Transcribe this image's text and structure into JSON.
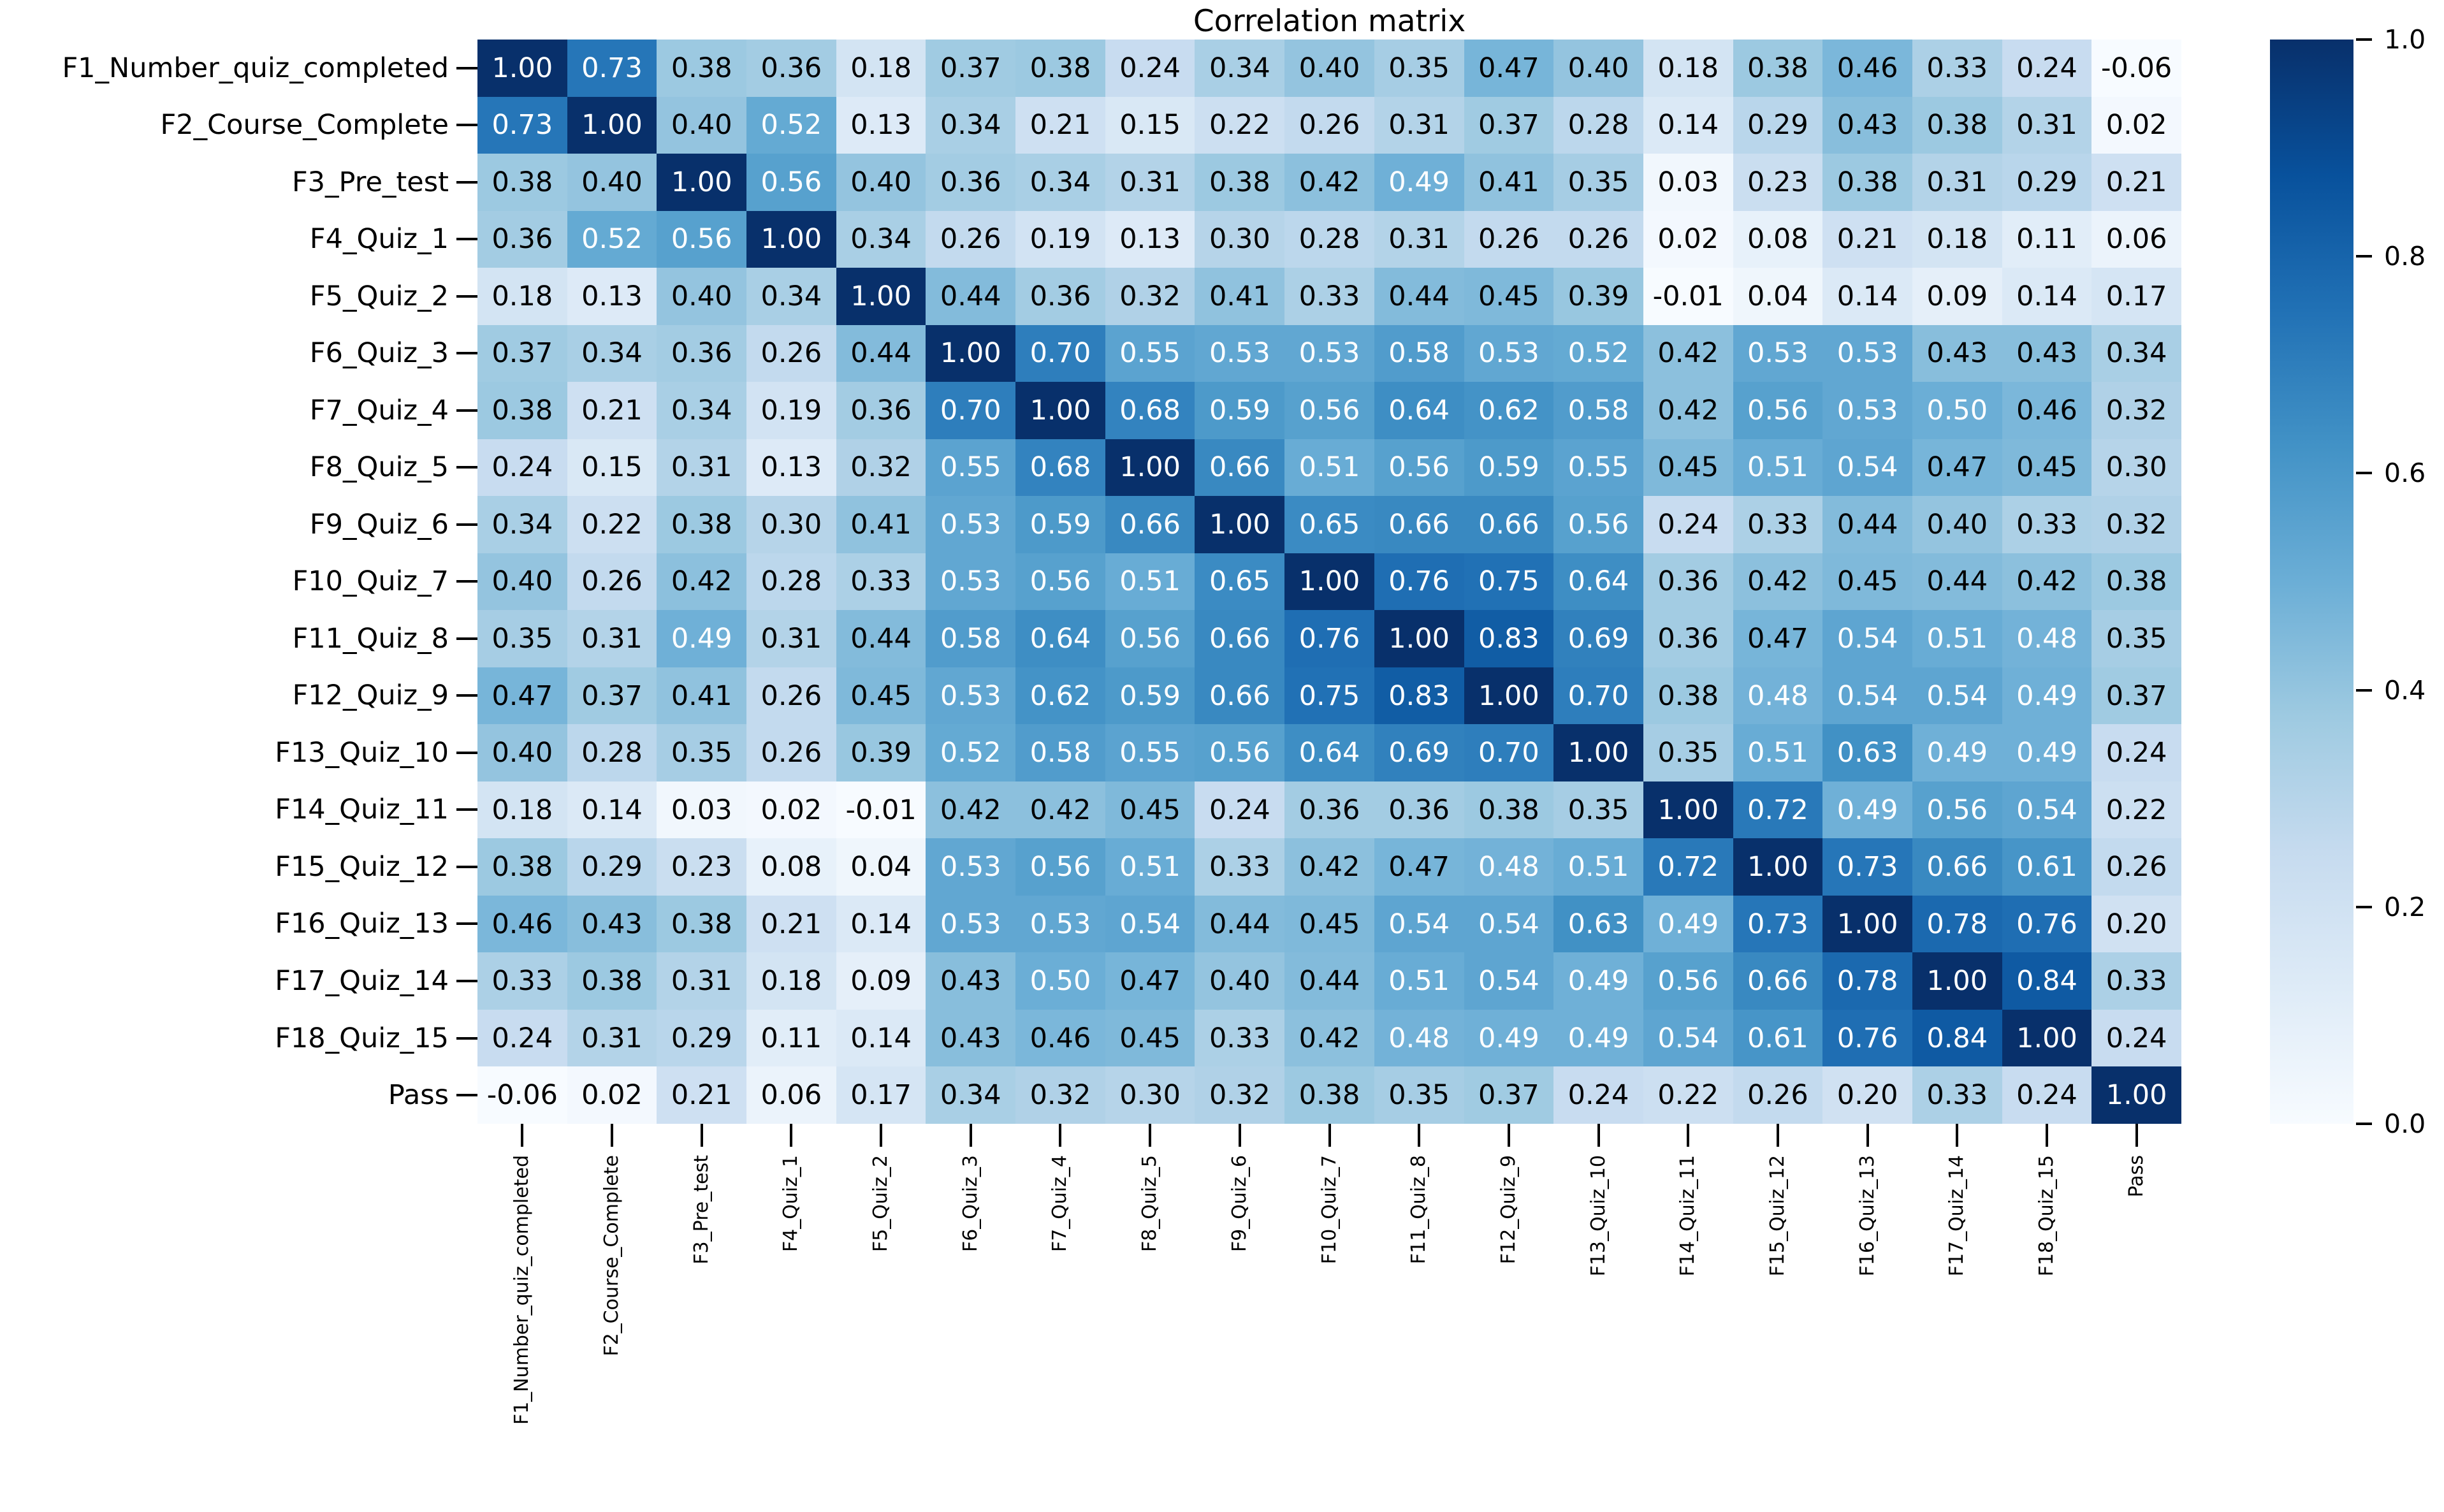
{
  "figure": {
    "background": "#ffffff"
  },
  "chart_data": {
    "type": "heatmap",
    "title": "Correlation matrix",
    "colormap": "Blues",
    "vmin": 0.0,
    "vmax": 1.0,
    "annotation_format": ".2f",
    "grid": false,
    "categories": [
      "F1_Number_quiz_completed",
      "F2_Course_Complete",
      "F3_Pre_test",
      "F4_Quiz_1",
      "F5_Quiz_2",
      "F6_Quiz_3",
      "F7_Quiz_4",
      "F8_Quiz_5",
      "F9_Quiz_6",
      "F10_Quiz_7",
      "F11_Quiz_8",
      "F12_Quiz_9",
      "F13_Quiz_10",
      "F14_Quiz_11",
      "F15_Quiz_12",
      "F16_Quiz_13",
      "F17_Quiz_14",
      "F18_Quiz_15",
      "Pass"
    ],
    "matrix": [
      [
        1.0,
        0.73,
        0.38,
        0.36,
        0.18,
        0.37,
        0.38,
        0.24,
        0.34,
        0.4,
        0.35,
        0.47,
        0.4,
        0.18,
        0.38,
        0.46,
        0.33,
        0.24,
        -0.06
      ],
      [
        0.73,
        1.0,
        0.4,
        0.52,
        0.13,
        0.34,
        0.21,
        0.15,
        0.22,
        0.26,
        0.31,
        0.37,
        0.28,
        0.14,
        0.29,
        0.43,
        0.38,
        0.31,
        0.02
      ],
      [
        0.38,
        0.4,
        1.0,
        0.56,
        0.4,
        0.36,
        0.34,
        0.31,
        0.38,
        0.42,
        0.49,
        0.41,
        0.35,
        0.03,
        0.23,
        0.38,
        0.31,
        0.29,
        0.21
      ],
      [
        0.36,
        0.52,
        0.56,
        1.0,
        0.34,
        0.26,
        0.19,
        0.13,
        0.3,
        0.28,
        0.31,
        0.26,
        0.26,
        0.02,
        0.08,
        0.21,
        0.18,
        0.11,
        0.06
      ],
      [
        0.18,
        0.13,
        0.4,
        0.34,
        1.0,
        0.44,
        0.36,
        0.32,
        0.41,
        0.33,
        0.44,
        0.45,
        0.39,
        -0.01,
        0.04,
        0.14,
        0.09,
        0.14,
        0.17
      ],
      [
        0.37,
        0.34,
        0.36,
        0.26,
        0.44,
        1.0,
        0.7,
        0.55,
        0.53,
        0.53,
        0.58,
        0.53,
        0.52,
        0.42,
        0.53,
        0.53,
        0.43,
        0.43,
        0.34
      ],
      [
        0.38,
        0.21,
        0.34,
        0.19,
        0.36,
        0.7,
        1.0,
        0.68,
        0.59,
        0.56,
        0.64,
        0.62,
        0.58,
        0.42,
        0.56,
        0.53,
        0.5,
        0.46,
        0.32
      ],
      [
        0.24,
        0.15,
        0.31,
        0.13,
        0.32,
        0.55,
        0.68,
        1.0,
        0.66,
        0.51,
        0.56,
        0.59,
        0.55,
        0.45,
        0.51,
        0.54,
        0.47,
        0.45,
        0.3
      ],
      [
        0.34,
        0.22,
        0.38,
        0.3,
        0.41,
        0.53,
        0.59,
        0.66,
        1.0,
        0.65,
        0.66,
        0.66,
        0.56,
        0.24,
        0.33,
        0.44,
        0.4,
        0.33,
        0.32
      ],
      [
        0.4,
        0.26,
        0.42,
        0.28,
        0.33,
        0.53,
        0.56,
        0.51,
        0.65,
        1.0,
        0.76,
        0.75,
        0.64,
        0.36,
        0.42,
        0.45,
        0.44,
        0.42,
        0.38
      ],
      [
        0.35,
        0.31,
        0.49,
        0.31,
        0.44,
        0.58,
        0.64,
        0.56,
        0.66,
        0.76,
        1.0,
        0.83,
        0.69,
        0.36,
        0.47,
        0.54,
        0.51,
        0.48,
        0.35
      ],
      [
        0.47,
        0.37,
        0.41,
        0.26,
        0.45,
        0.53,
        0.62,
        0.59,
        0.66,
        0.75,
        0.83,
        1.0,
        0.7,
        0.38,
        0.48,
        0.54,
        0.54,
        0.49,
        0.37
      ],
      [
        0.4,
        0.28,
        0.35,
        0.26,
        0.39,
        0.52,
        0.58,
        0.55,
        0.56,
        0.64,
        0.69,
        0.7,
        1.0,
        0.35,
        0.51,
        0.63,
        0.49,
        0.49,
        0.24
      ],
      [
        0.18,
        0.14,
        0.03,
        0.02,
        -0.01,
        0.42,
        0.42,
        0.45,
        0.24,
        0.36,
        0.36,
        0.38,
        0.35,
        1.0,
        0.72,
        0.49,
        0.56,
        0.54,
        0.22
      ],
      [
        0.38,
        0.29,
        0.23,
        0.08,
        0.04,
        0.53,
        0.56,
        0.51,
        0.33,
        0.42,
        0.47,
        0.48,
        0.51,
        0.72,
        1.0,
        0.73,
        0.66,
        0.61,
        0.26
      ],
      [
        0.46,
        0.43,
        0.38,
        0.21,
        0.14,
        0.53,
        0.53,
        0.54,
        0.44,
        0.45,
        0.54,
        0.54,
        0.63,
        0.49,
        0.73,
        1.0,
        0.78,
        0.76,
        0.2
      ],
      [
        0.33,
        0.38,
        0.31,
        0.18,
        0.09,
        0.43,
        0.5,
        0.47,
        0.4,
        0.44,
        0.51,
        0.54,
        0.49,
        0.56,
        0.66,
        0.78,
        1.0,
        0.84,
        0.33
      ],
      [
        0.24,
        0.31,
        0.29,
        0.11,
        0.14,
        0.43,
        0.46,
        0.45,
        0.33,
        0.42,
        0.48,
        0.49,
        0.49,
        0.54,
        0.61,
        0.76,
        0.84,
        1.0,
        0.24
      ],
      [
        -0.06,
        0.02,
        0.21,
        0.06,
        0.17,
        0.34,
        0.32,
        0.3,
        0.32,
        0.38,
        0.35,
        0.37,
        0.24,
        0.22,
        0.26,
        0.2,
        0.33,
        0.24,
        1.0
      ]
    ],
    "colormap_anchors": [
      "#f7fbff",
      "#deebf7",
      "#c6dbef",
      "#9ecae1",
      "#6baed6",
      "#4292c6",
      "#2171b5",
      "#08519c",
      "#08306b"
    ],
    "annotation_text_colors": {
      "light_cells": "#000000",
      "dark_cells": "#ffffff"
    },
    "colorbar": {
      "orientation": "vertical",
      "position": "right",
      "ticks": [
        "1.0",
        "0.8",
        "0.6",
        "0.4",
        "0.2",
        "0.0"
      ]
    },
    "legend": null
  }
}
